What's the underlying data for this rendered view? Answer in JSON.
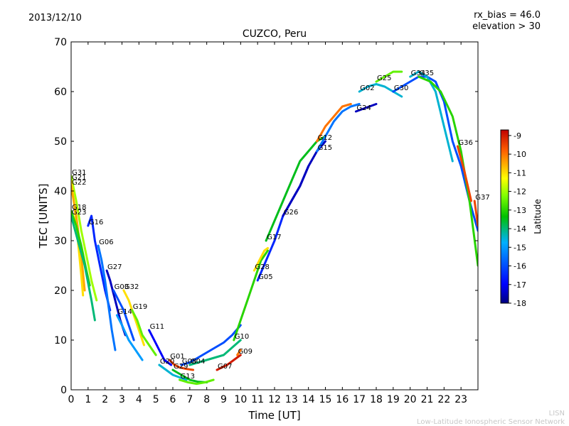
{
  "header": {
    "date": "2013/12/10",
    "rx_bias": "rx_bias = 46.0",
    "elevation": "elevation > 30"
  },
  "footer": {
    "line1": "LISN",
    "line2": "Low-Latitude Ionospheric Sensor Network"
  },
  "chart_data": {
    "type": "line",
    "title": "CUZCO, Peru",
    "xlabel": "Time [UT]",
    "ylabel": "TEC [UNITS]",
    "xlim": [
      0,
      24
    ],
    "ylim": [
      0,
      70
    ],
    "xticks": [
      "0",
      "1",
      "2",
      "3",
      "4",
      "5",
      "6",
      "7",
      "8",
      "9",
      "10",
      "11",
      "12",
      "13",
      "14",
      "15",
      "16",
      "17",
      "18",
      "19",
      "20",
      "21",
      "22",
      "23"
    ],
    "yticks": [
      "0",
      "10",
      "20",
      "30",
      "40",
      "50",
      "60",
      "70"
    ],
    "colorbar": {
      "label": "Latitude",
      "range": [
        -18,
        -8.7
      ],
      "ticks": [
        "-9",
        "-10",
        "-11",
        "-12",
        "-13",
        "-14",
        "-15",
        "-16",
        "-17",
        "-18"
      ]
    },
    "series": [
      {
        "name": "G31",
        "lat": -12.0,
        "points": [
          [
            0,
            43
          ],
          [
            0.3,
            38
          ],
          [
            0.6,
            32
          ],
          [
            0.9,
            27
          ],
          [
            1.2,
            22
          ],
          [
            1.5,
            18
          ]
        ]
      },
      {
        "name": "G21",
        "lat": -11.0,
        "points": [
          [
            0,
            42
          ],
          [
            0.2,
            37
          ],
          [
            0.4,
            30
          ],
          [
            0.6,
            23
          ],
          [
            0.7,
            19
          ]
        ]
      },
      {
        "name": "G22",
        "lat": -10.5,
        "points": [
          [
            0,
            41
          ],
          [
            0.3,
            35
          ],
          [
            0.6,
            27
          ],
          [
            0.8,
            20
          ]
        ]
      },
      {
        "name": "G18",
        "lat": -13.0,
        "points": [
          [
            0,
            36
          ],
          [
            0.3,
            33
          ],
          [
            0.6,
            29
          ],
          [
            0.9,
            24
          ],
          [
            1.1,
            21
          ]
        ]
      },
      {
        "name": "G23",
        "lat": -14.0,
        "points": [
          [
            0,
            35
          ],
          [
            0.4,
            30
          ],
          [
            0.8,
            25
          ],
          [
            1.2,
            18
          ],
          [
            1.4,
            14
          ]
        ]
      },
      {
        "name": "G16",
        "lat": -16.5,
        "points": [
          [
            1.0,
            33
          ],
          [
            1.2,
            35
          ],
          [
            1.4,
            30
          ],
          [
            1.7,
            25
          ],
          [
            2.0,
            20
          ],
          [
            2.3,
            16
          ]
        ]
      },
      {
        "name": "G06",
        "lat": -15.5,
        "points": [
          [
            1.6,
            29
          ],
          [
            1.8,
            26
          ],
          [
            2.0,
            22
          ],
          [
            2.2,
            17
          ],
          [
            2.4,
            12
          ],
          [
            2.6,
            8
          ]
        ]
      },
      {
        "name": "G27",
        "lat": -17.5,
        "points": [
          [
            2.1,
            24
          ],
          [
            2.3,
            22
          ],
          [
            2.6,
            18
          ],
          [
            2.9,
            14
          ],
          [
            3.2,
            11
          ]
        ]
      },
      {
        "name": "G03",
        "lat": -16.0,
        "points": [
          [
            2.5,
            20
          ],
          [
            2.8,
            18
          ],
          [
            3.1,
            16
          ],
          [
            3.4,
            13
          ],
          [
            3.7,
            10
          ]
        ]
      },
      {
        "name": "G32",
        "lat": -11.0,
        "points": [
          [
            3.1,
            20
          ],
          [
            3.4,
            18
          ],
          [
            3.7,
            15
          ],
          [
            4.0,
            12
          ],
          [
            4.3,
            9
          ]
        ]
      },
      {
        "name": "G19",
        "lat": -12.5,
        "points": [
          [
            3.6,
            16
          ],
          [
            3.9,
            14
          ],
          [
            4.2,
            11
          ],
          [
            4.6,
            9
          ],
          [
            5.0,
            7
          ]
        ]
      },
      {
        "name": "G14",
        "lat": -15.0,
        "points": [
          [
            2.7,
            15
          ],
          [
            3.0,
            13
          ],
          [
            3.4,
            10
          ],
          [
            3.8,
            8
          ],
          [
            4.2,
            6
          ]
        ]
      },
      {
        "name": "G11",
        "lat": -17.0,
        "points": [
          [
            4.6,
            12
          ],
          [
            4.9,
            10
          ],
          [
            5.2,
            8
          ],
          [
            5.5,
            6
          ],
          [
            5.9,
            5
          ]
        ]
      },
      {
        "name": "G01",
        "lat": -9.5,
        "points": [
          [
            5.8,
            6
          ],
          [
            6.1,
            5
          ],
          [
            6.4,
            4.5
          ],
          [
            6.8,
            4.2
          ],
          [
            7.2,
            4
          ]
        ]
      },
      {
        "name": "G20",
        "lat": -14.5,
        "points": [
          [
            5.2,
            5
          ],
          [
            5.6,
            4
          ],
          [
            6.0,
            3
          ],
          [
            6.4,
            2.5
          ],
          [
            6.8,
            2
          ]
        ]
      },
      {
        "name": "G29",
        "lat": -13.5,
        "points": [
          [
            6.0,
            4
          ],
          [
            6.5,
            3
          ],
          [
            7.0,
            2
          ],
          [
            7.5,
            1.6
          ],
          [
            8.0,
            1.5
          ]
        ]
      },
      {
        "name": "G13",
        "lat": -12.5,
        "points": [
          [
            6.4,
            2
          ],
          [
            6.9,
            1.5
          ],
          [
            7.4,
            1.2
          ],
          [
            7.9,
            1.5
          ],
          [
            8.4,
            2
          ]
        ]
      },
      {
        "name": "G07",
        "lat": -9.0,
        "points": [
          [
            8.6,
            4
          ],
          [
            8.9,
            4.5
          ],
          [
            9.2,
            5
          ],
          [
            9.6,
            6
          ],
          [
            10.0,
            7
          ]
        ]
      },
      {
        "name": "G04",
        "lat": -14.0,
        "points": [
          [
            7.0,
            5
          ],
          [
            7.5,
            5.5
          ],
          [
            8.0,
            6
          ],
          [
            8.5,
            6.5
          ],
          [
            9.0,
            7
          ],
          [
            9.5,
            8.5
          ],
          [
            10.0,
            10
          ]
        ]
      },
      {
        "name": "G08",
        "lat": -16.0,
        "points": [
          [
            6.5,
            5
          ],
          [
            7.0,
            5.5
          ],
          [
            7.5,
            6.5
          ],
          [
            8.0,
            7.5
          ],
          [
            8.5,
            8.5
          ],
          [
            9.0,
            9.5
          ],
          [
            9.5,
            11
          ],
          [
            10.0,
            13
          ]
        ]
      },
      {
        "name": "G09",
        "lat": -10.0,
        "points": [
          [
            9.8,
            7
          ],
          [
            10.0,
            8
          ]
        ]
      },
      {
        "name": "G10",
        "lat": -13.0,
        "points": [
          [
            9.6,
            10
          ],
          [
            10.0,
            14
          ],
          [
            10.4,
            18
          ],
          [
            10.8,
            22
          ],
          [
            11.2,
            26
          ],
          [
            11.6,
            28
          ]
        ]
      },
      {
        "name": "G28",
        "lat": -11.0,
        "points": [
          [
            10.8,
            24
          ],
          [
            11.1,
            26
          ],
          [
            11.4,
            28
          ],
          [
            11.6,
            28.5
          ]
        ]
      },
      {
        "name": "G05",
        "lat": -16.5,
        "points": [
          [
            11.0,
            22
          ],
          [
            11.5,
            26
          ],
          [
            12.0,
            30
          ],
          [
            12.5,
            35
          ],
          [
            13.0,
            38
          ],
          [
            13.5,
            41
          ],
          [
            14.0,
            45
          ]
        ]
      },
      {
        "name": "G26",
        "lat": -17.5,
        "points": [
          [
            12.5,
            35
          ],
          [
            13.0,
            38
          ],
          [
            13.5,
            41
          ],
          [
            14.0,
            45
          ],
          [
            14.5,
            48
          ],
          [
            15.0,
            50
          ]
        ]
      },
      {
        "name": "G17",
        "lat": -13.5,
        "points": [
          [
            11.5,
            30
          ],
          [
            12.0,
            34
          ],
          [
            12.5,
            38
          ],
          [
            13.0,
            42
          ],
          [
            13.5,
            46
          ],
          [
            14.0,
            48
          ],
          [
            14.5,
            50
          ],
          [
            15.0,
            51
          ]
        ]
      },
      {
        "name": "G15",
        "lat": -15.5,
        "points": [
          [
            14.5,
            48
          ],
          [
            15.0,
            51
          ],
          [
            15.5,
            54
          ],
          [
            16.0,
            56
          ],
          [
            16.5,
            57
          ],
          [
            17.0,
            57.5
          ]
        ]
      },
      {
        "name": "G12",
        "lat": -10.0,
        "points": [
          [
            14.5,
            50
          ],
          [
            15.0,
            53
          ],
          [
            15.5,
            55
          ],
          [
            16.0,
            57
          ],
          [
            16.5,
            57.5
          ]
        ]
      },
      {
        "name": "G24",
        "lat": -17.5,
        "points": [
          [
            16.8,
            56
          ],
          [
            17.2,
            56.5
          ],
          [
            17.6,
            57
          ],
          [
            18.0,
            57.5
          ]
        ]
      },
      {
        "name": "G02",
        "lat": -14.5,
        "points": [
          [
            17.0,
            60
          ],
          [
            17.5,
            61
          ],
          [
            18.0,
            61.5
          ],
          [
            18.5,
            61
          ],
          [
            19.0,
            60
          ],
          [
            19.5,
            59
          ]
        ]
      },
      {
        "name": "G25",
        "lat": -12.5,
        "points": [
          [
            18.0,
            62
          ],
          [
            18.5,
            63
          ],
          [
            19.0,
            64
          ],
          [
            19.5,
            64
          ]
        ]
      },
      {
        "name": "G30",
        "lat": -16.0,
        "points": [
          [
            19.0,
            60
          ],
          [
            19.5,
            61
          ],
          [
            20.0,
            62
          ],
          [
            20.5,
            63
          ],
          [
            21.0,
            63
          ],
          [
            21.5,
            62
          ],
          [
            22.0,
            58
          ],
          [
            22.5,
            50
          ],
          [
            23.0,
            45
          ],
          [
            23.5,
            38
          ],
          [
            24.0,
            32
          ]
        ]
      },
      {
        "name": "G34",
        "lat": -14.5,
        "points": [
          [
            20.0,
            63
          ],
          [
            20.5,
            64
          ],
          [
            21.0,
            63
          ],
          [
            21.5,
            60
          ],
          [
            22.0,
            53
          ],
          [
            22.5,
            46
          ]
        ]
      },
      {
        "name": "G35",
        "lat": -13.0,
        "points": [
          [
            20.5,
            63
          ],
          [
            21.2,
            62
          ],
          [
            21.8,
            60
          ],
          [
            22.5,
            55
          ],
          [
            23.0,
            48
          ],
          [
            23.5,
            38
          ],
          [
            24.0,
            25
          ]
        ]
      },
      {
        "name": "G36",
        "lat": -9.5,
        "points": [
          [
            22.8,
            49
          ],
          [
            23.2,
            44
          ],
          [
            23.6,
            38
          ]
        ]
      },
      {
        "name": "G37",
        "lat": -9.5,
        "points": [
          [
            23.8,
            38
          ],
          [
            24.0,
            33
          ]
        ]
      }
    ]
  }
}
